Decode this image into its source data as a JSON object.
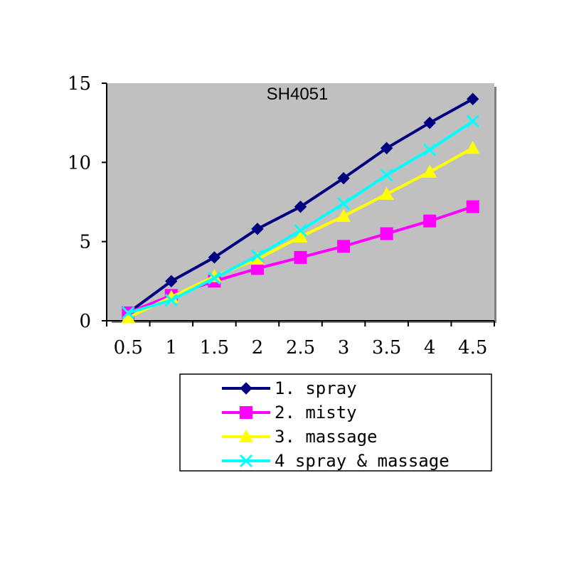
{
  "chart_data": {
    "type": "line",
    "title": "SH4051",
    "xlabel": "",
    "ylabel": "",
    "x_tick_labels": [
      "0.5",
      "1",
      "1.5",
      "2",
      "2.5",
      "3",
      "3.5",
      "4",
      "4.5"
    ],
    "y_tick_labels": [
      "0",
      "5",
      "10",
      "15"
    ],
    "ylim": [
      0,
      15
    ],
    "grid": false,
    "background_color": "#c0c0c0",
    "legend_position": "bottom",
    "x": [
      0.5,
      1,
      1.5,
      2,
      2.5,
      3,
      3.5,
      4,
      4.5
    ],
    "series": [
      {
        "name": "1. spray",
        "color": "#000080",
        "marker": "diamond",
        "values": [
          0.5,
          2.5,
          4.0,
          5.8,
          7.2,
          9.0,
          10.9,
          12.5,
          14.0
        ]
      },
      {
        "name": "2. misty",
        "color": "#ff00ff",
        "marker": "square",
        "values": [
          0.5,
          1.6,
          2.5,
          3.3,
          4.0,
          4.7,
          5.5,
          6.3,
          7.2
        ]
      },
      {
        "name": "3. massage",
        "color": "#ffff00",
        "marker": "triangle",
        "values": [
          0.2,
          1.5,
          2.8,
          3.9,
          5.3,
          6.6,
          8.0,
          9.4,
          10.9
        ]
      },
      {
        "name": "4 spray & massage",
        "color": "#00ffff",
        "marker": "x",
        "values": [
          0.5,
          1.3,
          2.7,
          4.1,
          5.7,
          7.4,
          9.2,
          10.8,
          12.6
        ]
      }
    ]
  }
}
